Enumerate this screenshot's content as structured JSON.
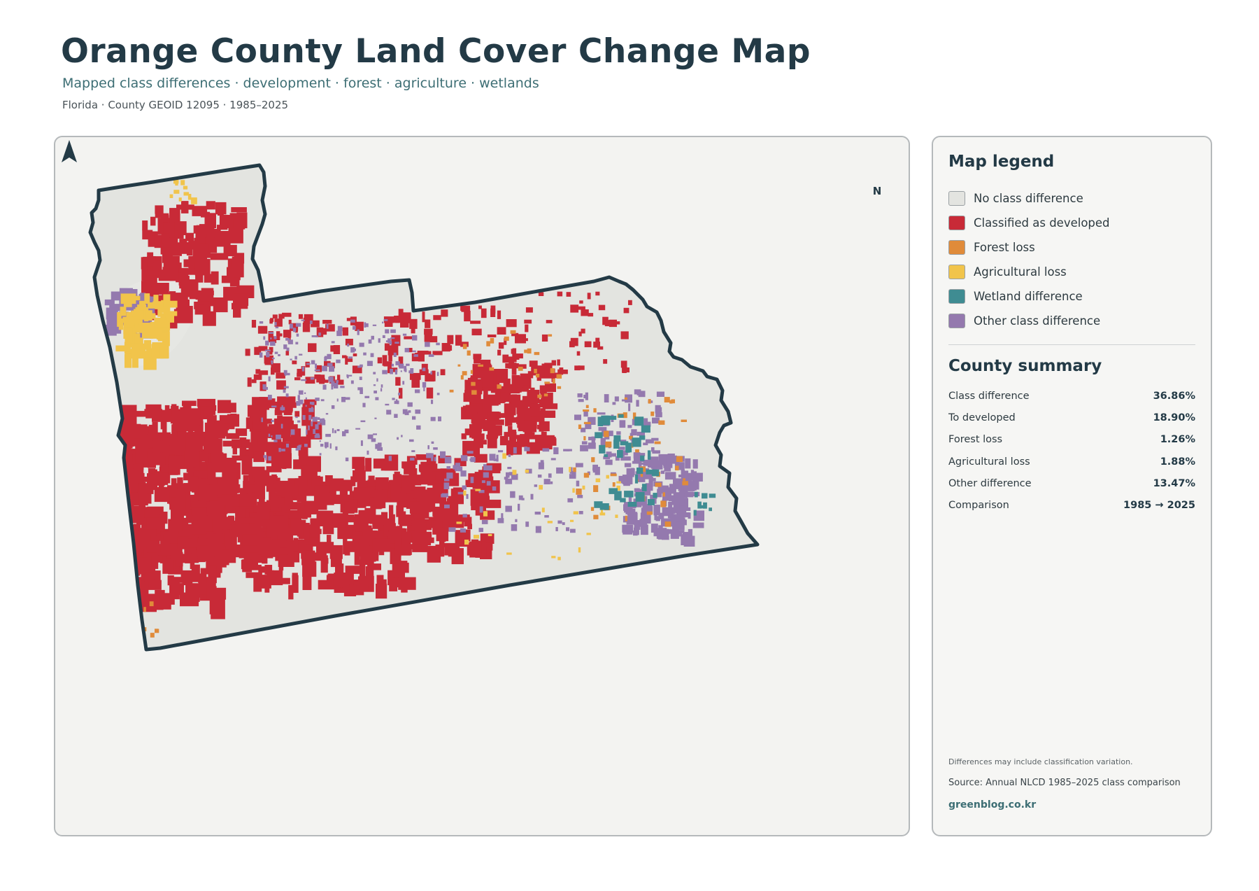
{
  "header": {
    "title": "Orange County Land Cover Change Map",
    "subtitle": "Mapped class differences · development · forest · agriculture · wetlands",
    "meta": "Florida · County GEOID 12095 · 1985–2025"
  },
  "map": {
    "north_label": "N",
    "colors": {
      "no_change": "#e3e4e0",
      "developed": "#c82a37",
      "forest_loss": "#e08b3a",
      "agricultural_loss": "#f1c44b",
      "wetland": "#3f8c92",
      "other": "#9479ae",
      "outline": "#233a46",
      "water": "#e6e7e3"
    }
  },
  "legend": {
    "title": "Map legend",
    "items": [
      {
        "label": "No class difference",
        "color": "#e3e4e0"
      },
      {
        "label": "Classified as developed",
        "color": "#c82a37"
      },
      {
        "label": "Forest loss",
        "color": "#e08b3a"
      },
      {
        "label": "Agricultural loss",
        "color": "#f1c44b"
      },
      {
        "label": "Wetland difference",
        "color": "#3f8c92"
      },
      {
        "label": "Other class difference",
        "color": "#9479ae"
      }
    ]
  },
  "summary": {
    "title": "County summary",
    "rows": [
      {
        "key": "Class difference",
        "value": "36.86%"
      },
      {
        "key": "To developed",
        "value": "18.90%"
      },
      {
        "key": "Forest loss",
        "value": "1.26%"
      },
      {
        "key": "Agricultural loss",
        "value": "1.88%"
      },
      {
        "key": "Other difference",
        "value": "13.47%"
      },
      {
        "key": "Comparison",
        "value": "1985 → 2025"
      }
    ]
  },
  "footer": {
    "note": "Differences may include classification variation.",
    "source": "Source: Annual NLCD 1985–2025 class comparison",
    "site": "greenblog.co.kr"
  }
}
